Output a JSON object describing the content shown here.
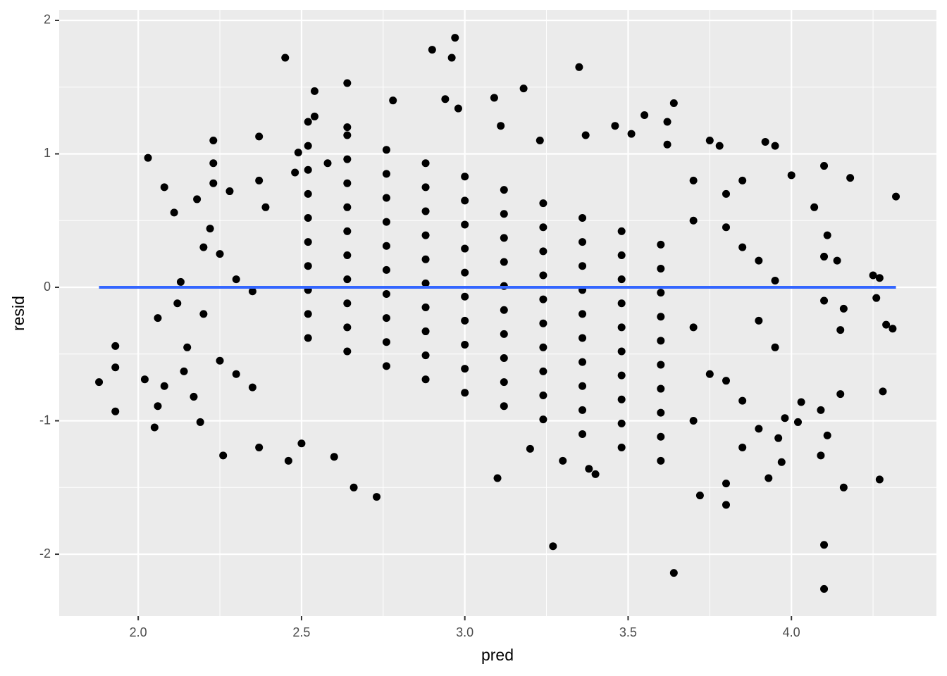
{
  "chart_data": {
    "type": "scatter",
    "x_label": "pred",
    "y_label": "resid",
    "color": "#000000",
    "x": [
      2.45,
      2.54,
      2.64,
      2.9,
      2.96,
      2.97,
      3.35,
      3.18,
      3.09,
      2.78,
      3.27,
      3.64,
      4.1,
      4.1,
      2.73,
      2.66,
      3.1,
      3.72,
      3.8,
      3.8,
      4.27,
      4.16,
      4.32,
      4.18,
      4.1,
      4.0,
      4.27,
      4.25,
      4.26,
      4.29,
      4.31,
      4.28,
      4.09,
      4.09,
      4.11,
      4.15,
      4.16,
      4.15,
      4.1,
      4.11,
      4.1,
      4.14,
      4.07,
      4.03,
      4.02,
      3.98,
      3.97,
      3.96,
      3.93,
      3.9,
      3.85,
      3.92,
      3.95,
      3.78,
      3.75,
      3.62,
      3.64,
      3.62,
      3.55,
      3.51,
      3.46,
      3.37,
      3.23,
      3.11,
      2.98,
      2.94,
      2.64,
      2.54,
      2.37,
      2.23,
      2.03,
      2.08,
      2.11,
      2.18,
      2.23,
      2.23,
      2.28,
      2.37,
      2.39,
      2.48,
      2.49,
      2.58,
      1.88,
      1.93,
      1.93,
      1.93,
      2.02,
      2.05,
      2.06,
      2.2,
      2.25,
      2.3,
      2.35,
      2.2,
      2.25,
      2.3,
      2.35,
      2.19,
      2.26,
      2.37,
      2.46,
      2.5,
      2.6,
      3.2,
      3.3,
      3.38,
      3.4,
      3.7,
      3.8,
      3.85,
      3.7,
      3.8,
      3.85,
      3.9,
      3.95,
      3.9,
      3.95,
      3.7,
      3.75,
      3.8,
      3.85,
      3.7,
      2.13,
      2.15,
      2.14,
      2.17,
      2.06,
      2.08,
      2.12,
      2.22,
      2.52,
      2.64,
      2.76,
      2.88,
      3.0,
      3.12,
      3.24,
      3.36,
      3.48,
      3.6,
      2.52,
      2.64,
      2.76,
      2.88,
      3.0,
      3.12,
      3.24,
      3.36,
      3.48,
      3.6,
      2.52,
      2.64,
      2.76,
      2.88,
      3.0,
      3.12,
      3.24,
      3.36,
      3.48,
      3.6,
      2.52,
      2.64,
      2.76,
      2.88,
      3.0,
      3.12,
      3.24,
      3.36,
      3.48,
      3.6,
      2.52,
      2.64,
      2.76,
      2.88,
      3.0,
      3.12,
      3.24,
      3.36,
      3.48,
      3.6,
      2.52,
      2.64,
      2.76,
      2.88,
      3.0,
      3.12,
      3.24,
      3.36,
      3.48,
      3.6,
      2.52,
      2.64,
      2.76,
      2.88,
      3.0,
      3.12,
      3.24,
      3.36,
      3.48,
      3.6,
      2.52,
      2.64,
      2.76,
      2.88,
      3.0,
      3.12,
      3.24,
      3.36,
      3.48,
      3.6,
      2.52,
      2.64,
      2.76,
      2.88,
      3.0,
      3.12,
      3.24,
      3.36,
      3.48,
      3.6,
      2.52,
      2.64,
      2.76,
      2.88,
      3.0,
      3.12,
      3.24,
      3.36,
      3.48,
      3.6
    ],
    "values": [
      1.72,
      1.47,
      1.53,
      1.78,
      1.72,
      1.87,
      1.65,
      1.49,
      1.42,
      1.4,
      -1.94,
      -2.14,
      -2.26,
      -1.93,
      -1.57,
      -1.5,
      -1.43,
      -1.56,
      -1.63,
      -1.47,
      -1.44,
      -1.5,
      0.68,
      0.82,
      0.91,
      0.84,
      0.07,
      0.09,
      -0.08,
      -0.28,
      -0.31,
      -0.78,
      -1.26,
      -0.92,
      -1.11,
      -0.8,
      -0.16,
      -0.32,
      -0.1,
      0.39,
      0.23,
      0.2,
      0.6,
      -0.86,
      -1.01,
      -0.98,
      -1.31,
      -1.13,
      -1.43,
      -1.06,
      -1.2,
      1.09,
      1.06,
      1.06,
      1.1,
      1.07,
      1.38,
      1.24,
      1.29,
      1.15,
      1.21,
      1.14,
      1.1,
      1.21,
      1.34,
      1.41,
      1.2,
      1.28,
      1.13,
      1.1,
      0.97,
      0.75,
      0.56,
      0.66,
      0.78,
      0.93,
      0.72,
      0.8,
      0.6,
      0.86,
      1.01,
      0.93,
      -0.71,
      -0.44,
      -0.6,
      -0.93,
      -0.69,
      -1.05,
      -0.23,
      0.3,
      0.25,
      0.06,
      -0.03,
      -0.2,
      -0.55,
      -0.65,
      -0.75,
      -1.01,
      -1.26,
      -1.2,
      -1.3,
      -1.17,
      -1.27,
      -1.21,
      -1.3,
      -1.36,
      -1.4,
      0.8,
      0.7,
      0.8,
      0.5,
      0.45,
      0.3,
      0.2,
      0.05,
      -0.25,
      -0.45,
      -0.3,
      -0.65,
      -0.7,
      -0.85,
      -1.0,
      0.04,
      -0.45,
      -0.63,
      -0.82,
      -0.89,
      -0.74,
      -0.12,
      0.44,
      1.24,
      1.14,
      1.03,
      0.93,
      0.83,
      0.73,
      0.63,
      0.52,
      0.42,
      0.32,
      1.06,
      0.96,
      0.85,
      0.75,
      0.65,
      0.55,
      0.45,
      0.34,
      0.24,
      0.14,
      0.88,
      0.78,
      0.67,
      0.57,
      0.47,
      0.37,
      0.27,
      0.16,
      0.06,
      -0.04,
      0.7,
      0.6,
      0.49,
      0.39,
      0.29,
      0.19,
      0.09,
      -0.02,
      -0.12,
      -0.22,
      0.52,
      0.42,
      0.31,
      0.21,
      0.11,
      0.01,
      -0.09,
      -0.2,
      -0.3,
      -0.4,
      0.34,
      0.24,
      0.13,
      0.03,
      -0.07,
      -0.17,
      -0.27,
      -0.38,
      -0.48,
      -0.58,
      0.16,
      0.06,
      -0.05,
      -0.15,
      -0.25,
      -0.35,
      -0.45,
      -0.56,
      -0.66,
      -0.76,
      -0.02,
      -0.12,
      -0.23,
      -0.33,
      -0.43,
      -0.53,
      -0.63,
      -0.74,
      -0.84,
      -0.94,
      -0.2,
      -0.3,
      -0.41,
      -0.51,
      -0.61,
      -0.71,
      -0.81,
      -0.92,
      -1.02,
      -1.12,
      -0.38,
      -0.48,
      -0.59,
      -0.69,
      -0.79,
      -0.89,
      -0.99,
      -1.1,
      -1.2,
      -1.3
    ],
    "reference_line": {
      "x": [
        1.88,
        4.32
      ],
      "y": [
        0,
        0
      ],
      "color": "#3366ff"
    },
    "xlim": [
      1.758,
      4.444
    ],
    "ylim": [
      -2.464,
      2.079
    ],
    "xticks": [
      {
        "value": 2,
        "label": "2.0"
      },
      {
        "value": 2.5,
        "label": "2.5"
      },
      {
        "value": 3,
        "label": "3.0"
      },
      {
        "value": 3.5,
        "label": "3.5"
      },
      {
        "value": 4,
        "label": "4.0"
      }
    ],
    "yticks": [
      -2,
      -1,
      0,
      1,
      2
    ],
    "x_minor_grid": [
      2.25,
      2.75,
      3.25,
      3.75,
      4.25
    ],
    "y_minor_grid": [
      -1.5,
      -0.5,
      0.5,
      1.5
    ],
    "grid": true,
    "panel_color": "#ebebeb"
  }
}
